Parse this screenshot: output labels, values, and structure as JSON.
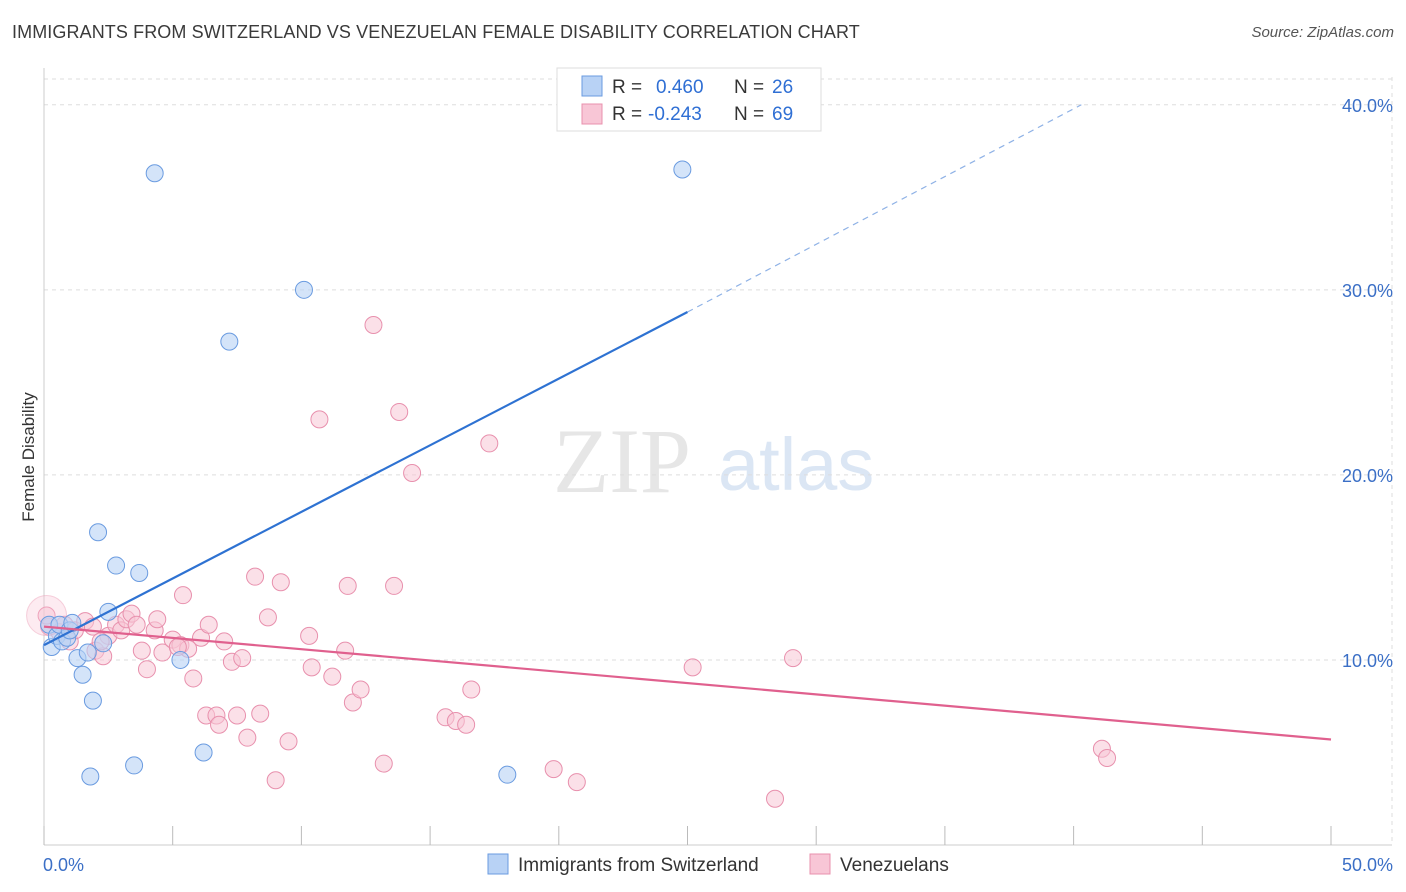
{
  "header": {
    "title": "IMMIGRANTS FROM SWITZERLAND VS VENEZUELAN FEMALE DISABILITY CORRELATION CHART",
    "source": "Source: ZipAtlas.com"
  },
  "watermark": {
    "zip": "ZIP",
    "atlas": "atlas"
  },
  "legend": {
    "r_label": "R =",
    "n_label": "N =",
    "rows": [
      {
        "r": "0.460",
        "n": "26"
      },
      {
        "r": "-0.243",
        "n": "69"
      }
    ]
  },
  "bottom_legend": [
    "Immigrants from Switzerland",
    "Venezuelans"
  ],
  "colors": {
    "blue_fill": "#b8d2f5",
    "blue_stroke": "#6a9be0",
    "blue_line": "#2e72d2",
    "pink_fill": "#f8c6d6",
    "pink_stroke": "#e890ad",
    "pink_line": "#e0608e",
    "tick_text": "#3b6fc6",
    "grid": "#dddddd"
  },
  "chart_data": {
    "type": "scatter",
    "title": "IMMIGRANTS FROM SWITZERLAND VS VENEZUELAN FEMALE DISABILITY CORRELATION CHART",
    "xlabel": "",
    "ylabel": "Female Disability",
    "xlim": [
      0,
      50
    ],
    "ylim": [
      0,
      41.5
    ],
    "x_tick_labels": [
      "0.0%",
      "50.0%"
    ],
    "y_ticks": [
      10,
      20,
      30,
      40
    ],
    "y_tick_labels": [
      "10.0%",
      "20.0%",
      "30.0%",
      "40.0%"
    ],
    "grid": true,
    "legend_position": "top-center",
    "series": [
      {
        "name": "Immigrants from Switzerland",
        "r": 0.46,
        "n": 26,
        "trend": {
          "x": [
            0,
            25
          ],
          "y": [
            10.8,
            28.8
          ],
          "dashed_to": [
            40.3,
            40.0
          ]
        },
        "points": [
          [
            0.2,
            11.9
          ],
          [
            0.3,
            10.7
          ],
          [
            0.5,
            11.3
          ],
          [
            0.6,
            11.9
          ],
          [
            0.7,
            11.0
          ],
          [
            0.9,
            11.2
          ],
          [
            1.0,
            11.6
          ],
          [
            1.1,
            12.0
          ],
          [
            1.3,
            10.1
          ],
          [
            1.5,
            9.2
          ],
          [
            1.7,
            10.4
          ],
          [
            1.9,
            7.8
          ],
          [
            2.1,
            16.9
          ],
          [
            2.3,
            10.9
          ],
          [
            2.5,
            12.6
          ],
          [
            2.8,
            15.1
          ],
          [
            3.5,
            4.3
          ],
          [
            3.7,
            14.7
          ],
          [
            4.3,
            36.3
          ],
          [
            5.3,
            10.0
          ],
          [
            6.2,
            5.0
          ],
          [
            7.2,
            27.2
          ],
          [
            10.1,
            30.0
          ],
          [
            18.0,
            3.8
          ],
          [
            24.8,
            36.5
          ],
          [
            1.8,
            3.7
          ]
        ]
      },
      {
        "name": "Venezuelans",
        "r": -0.243,
        "n": 69,
        "trend": {
          "x": [
            0,
            50
          ],
          "y": [
            11.8,
            5.7
          ]
        },
        "points": [
          [
            0.2,
            11.8
          ],
          [
            0.6,
            11.5
          ],
          [
            0.8,
            11.9
          ],
          [
            1.0,
            11.0
          ],
          [
            1.2,
            11.6
          ],
          [
            1.6,
            12.1
          ],
          [
            1.9,
            11.8
          ],
          [
            2.0,
            10.5
          ],
          [
            2.3,
            10.2
          ],
          [
            2.5,
            11.3
          ],
          [
            2.8,
            11.9
          ],
          [
            3.0,
            11.6
          ],
          [
            3.2,
            12.2
          ],
          [
            3.4,
            12.5
          ],
          [
            3.8,
            10.5
          ],
          [
            4.0,
            9.5
          ],
          [
            4.3,
            11.6
          ],
          [
            4.4,
            12.2
          ],
          [
            4.6,
            10.4
          ],
          [
            5.0,
            11.1
          ],
          [
            5.3,
            10.8
          ],
          [
            5.4,
            13.5
          ],
          [
            5.6,
            10.6
          ],
          [
            5.8,
            9.0
          ],
          [
            6.1,
            11.2
          ],
          [
            6.3,
            7.0
          ],
          [
            6.4,
            11.9
          ],
          [
            6.7,
            7.0
          ],
          [
            6.8,
            6.5
          ],
          [
            7.3,
            9.9
          ],
          [
            7.5,
            7.0
          ],
          [
            7.7,
            10.1
          ],
          [
            7.9,
            5.8
          ],
          [
            8.2,
            14.5
          ],
          [
            8.4,
            7.1
          ],
          [
            8.7,
            12.3
          ],
          [
            9.0,
            3.5
          ],
          [
            9.2,
            14.2
          ],
          [
            9.5,
            5.6
          ],
          [
            10.3,
            11.3
          ],
          [
            10.4,
            9.6
          ],
          [
            10.7,
            23.0
          ],
          [
            11.2,
            9.1
          ],
          [
            11.7,
            10.5
          ],
          [
            11.8,
            14.0
          ],
          [
            12.0,
            7.7
          ],
          [
            12.3,
            8.4
          ],
          [
            12.8,
            28.1
          ],
          [
            13.2,
            4.4
          ],
          [
            13.6,
            14.0
          ],
          [
            13.8,
            23.4
          ],
          [
            14.3,
            20.1
          ],
          [
            15.6,
            6.9
          ],
          [
            16.0,
            6.7
          ],
          [
            16.4,
            6.5
          ],
          [
            16.6,
            8.4
          ],
          [
            17.3,
            21.7
          ],
          [
            19.8,
            4.1
          ],
          [
            20.7,
            3.4
          ],
          [
            25.2,
            9.6
          ],
          [
            28.4,
            2.5
          ],
          [
            29.1,
            10.1
          ],
          [
            41.1,
            5.2
          ],
          [
            41.3,
            4.7
          ],
          [
            0.1,
            12.4
          ],
          [
            2.2,
            11.0
          ],
          [
            3.6,
            11.9
          ],
          [
            5.2,
            10.7
          ],
          [
            7.0,
            11.0
          ]
        ]
      }
    ]
  }
}
